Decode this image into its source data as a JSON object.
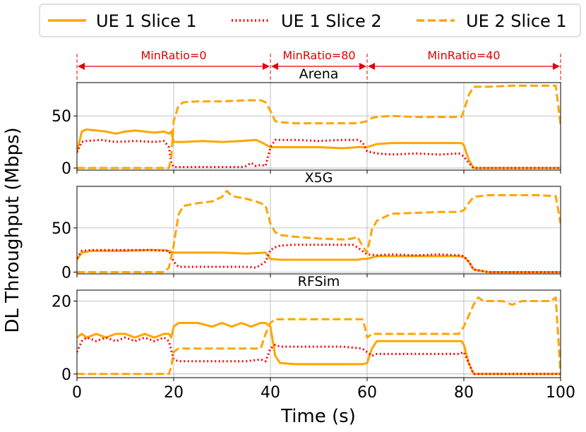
{
  "chart_data": {
    "type": "line",
    "xlabel": "Time (s)",
    "ylabel": "DL Throughput (Mbps)",
    "xlim": [
      0,
      100
    ],
    "xticks": [
      0,
      20,
      40,
      60,
      80,
      100
    ],
    "grid": true,
    "legend": {
      "position": "top",
      "entries": [
        {
          "name": "UE 1 Slice 1",
          "color": "#FFA500",
          "style": "solid"
        },
        {
          "name": "UE 1 Slice 2",
          "color": "#FF0000",
          "style": "dotted"
        },
        {
          "name": "UE 2 Slice 1",
          "color": "#FFA500",
          "style": "dashed"
        }
      ]
    },
    "annotations": [
      {
        "label": "MinRatio=0",
        "x_start": 0,
        "x_end": 40
      },
      {
        "label": "MinRatio=80",
        "x_start": 40,
        "x_end": 60
      },
      {
        "label": "MinRatio=40",
        "x_start": 60,
        "x_end": 100
      }
    ],
    "panels": [
      {
        "title": "Arena",
        "ylim": [
          -2,
          82
        ],
        "yticks": [
          0,
          50
        ],
        "series": [
          {
            "name": "UE 1 Slice 1",
            "x": [
              0,
              1,
              2,
              4,
              6,
              8,
              10,
              12,
              14,
              16,
              18,
              19,
              19.5,
              20,
              22,
              26,
              30,
              34,
              37,
              38,
              40,
              45,
              50,
              55,
              58,
              59,
              60,
              62,
              65,
              70,
              75,
              79.5,
              80,
              81,
              82,
              85,
              90,
              95,
              100
            ],
            "y": [
              15,
              35,
              37,
              36,
              35,
              33,
              35,
              36,
              35,
              34,
              35,
              33,
              35,
              25,
              25,
              26,
              25,
              26,
              27,
              25,
              20,
              20,
              20,
              19,
              20,
              20,
              20,
              23,
              24,
              24,
              24,
              24,
              22,
              8,
              0,
              0,
              0,
              0,
              0
            ]
          },
          {
            "name": "UE 1 Slice 2",
            "x": [
              0,
              1,
              2,
              5,
              8,
              12,
              16,
              18,
              19,
              19.5,
              20,
              22,
              26,
              30,
              34,
              35,
              36,
              37,
              38,
              39,
              40,
              41,
              45,
              50,
              55,
              58,
              59,
              60,
              62,
              65,
              70,
              75,
              79,
              80,
              81,
              82,
              85,
              90,
              95,
              100
            ],
            "y": [
              15,
              25,
              26,
              27,
              25,
              26,
              25,
              26,
              20,
              5,
              1,
              1,
              1,
              1,
              1,
              2,
              5,
              2,
              3,
              2,
              20,
              27,
              27,
              26,
              27,
              27,
              25,
              16,
              14,
              13,
              14,
              13,
              14,
              11,
              5,
              0,
              0,
              0,
              0,
              0
            ]
          },
          {
            "name": "UE 2 Slice 1",
            "x": [
              0,
              19,
              19.5,
              20,
              21,
              22,
              25,
              30,
              35,
              38,
              39,
              40,
              41,
              42,
              45,
              50,
              55,
              58,
              59,
              60,
              61,
              62,
              65,
              70,
              75,
              79.5,
              80,
              81,
              82,
              85,
              90,
              95,
              99,
              100
            ],
            "y": [
              0,
              0,
              10,
              45,
              60,
              63,
              64,
              64,
              65,
              65,
              63,
              55,
              45,
              44,
              43,
              43,
              43,
              43,
              44,
              45,
              48,
              49,
              50,
              49,
              49,
              49,
              55,
              70,
              78,
              78,
              79,
              79,
              79,
              42
            ]
          }
        ]
      },
      {
        "title": "X5G",
        "ylim": [
          -2,
          97
        ],
        "yticks": [
          0,
          50
        ],
        "series": [
          {
            "name": "UE 1 Slice 1",
            "x": [
              0,
              1,
              3,
              5,
              10,
              15,
              18,
              19,
              20,
              22,
              25,
              30,
              35,
              39,
              40,
              42,
              45,
              50,
              55,
              58,
              59,
              60,
              62,
              65,
              70,
              75,
              79,
              80,
              81,
              82,
              85,
              90,
              95,
              100
            ],
            "y": [
              14,
              22,
              24,
              24,
              24,
              25,
              25,
              24,
              22,
              22,
              22,
              22,
              21,
              22,
              15,
              14,
              14,
              14,
              14,
              14,
              15,
              15,
              18,
              18,
              18,
              18,
              18,
              17,
              12,
              3,
              0,
              0,
              0,
              0
            ]
          },
          {
            "name": "UE 1 Slice 2",
            "x": [
              0,
              1,
              3,
              5,
              10,
              15,
              18,
              19,
              20,
              21,
              22,
              25,
              30,
              35,
              37,
              38,
              39,
              40,
              41,
              42,
              45,
              50,
              55,
              57,
              58,
              59,
              60,
              62,
              65,
              70,
              75,
              79,
              80,
              81,
              82,
              85,
              90,
              95,
              100
            ],
            "y": [
              16,
              24,
              25,
              25,
              25,
              25,
              24,
              24,
              12,
              6,
              6,
              6,
              6,
              6,
              5,
              8,
              12,
              25,
              28,
              30,
              31,
              31,
              31,
              31,
              28,
              24,
              20,
              19,
              20,
              19,
              20,
              19,
              18,
              12,
              3,
              0,
              0,
              0,
              0
            ]
          },
          {
            "name": "UE 2 Slice 1",
            "x": [
              0,
              18,
              19,
              20,
              21,
              22,
              25,
              28,
              30,
              31,
              32,
              35,
              37,
              38,
              39,
              40,
              41,
              42,
              45,
              50,
              55,
              57,
              58,
              59,
              60,
              61,
              62,
              65,
              70,
              75,
              79,
              80,
              81,
              82,
              85,
              90,
              95,
              99,
              100
            ],
            "y": [
              0,
              0,
              5,
              30,
              65,
              75,
              78,
              80,
              85,
              92,
              86,
              83,
              80,
              78,
              75,
              55,
              45,
              42,
              40,
              38,
              37,
              38,
              40,
              30,
              22,
              48,
              58,
              66,
              67,
              68,
              68,
              70,
              78,
              85,
              87,
              87,
              87,
              86,
              55
            ]
          }
        ]
      },
      {
        "title": "RFSim",
        "ylim": [
          -1,
          23
        ],
        "yticks": [
          0,
          20
        ],
        "series": [
          {
            "name": "UE 1 Slice 1",
            "x": [
              0,
              1,
              2,
              4,
              6,
              8,
              10,
              12,
              14,
              16,
              18,
              19,
              19.5,
              20,
              21,
              22,
              25,
              28,
              30,
              32,
              34,
              36,
              38,
              39,
              40,
              41,
              42,
              45,
              50,
              55,
              59,
              60,
              61,
              62,
              65,
              70,
              75,
              79.5,
              80,
              81,
              82,
              85,
              90,
              95,
              100
            ],
            "y": [
              10,
              11,
              10,
              11,
              10,
              11,
              11,
              10,
              11,
              10,
              11,
              11,
              10,
              13,
              14,
              14,
              14,
              13,
              14,
              13,
              14,
              13,
              14,
              14,
              13,
              5,
              3,
              2.7,
              2.7,
              2.7,
              2.7,
              3,
              7,
              9,
              9,
              9,
              9,
              9,
              8,
              3,
              0,
              0,
              0,
              0,
              0
            ]
          },
          {
            "name": "UE 1 Slice 2",
            "x": [
              0,
              1,
              2,
              4,
              6,
              8,
              10,
              12,
              14,
              16,
              18,
              19,
              20,
              21,
              22,
              25,
              30,
              35,
              38,
              39,
              40,
              41,
              42,
              45,
              50,
              55,
              59,
              60,
              61,
              62,
              65,
              70,
              75,
              79,
              80,
              81,
              82,
              85,
              90,
              95,
              100
            ],
            "y": [
              6,
              9,
              10,
              9,
              10,
              9,
              10,
              9,
              10,
              9,
              10,
              9,
              4,
              3.5,
              3.5,
              3.5,
              3.5,
              3.5,
              4,
              3.5,
              7,
              8,
              7.5,
              7.5,
              7.5,
              7.5,
              7,
              6,
              5,
              5.5,
              5.5,
              5.5,
              5.5,
              5.5,
              6,
              3,
              0,
              0,
              0,
              0,
              0
            ]
          },
          {
            "name": "UE 2 Slice 1",
            "x": [
              0,
              19,
              19.5,
              20,
              21,
              22,
              25,
              30,
              35,
              38,
              39,
              40,
              41,
              42,
              45,
              50,
              55,
              59,
              59.5,
              60,
              61,
              62,
              65,
              70,
              75,
              79,
              80,
              81,
              82,
              83,
              84,
              86,
              88,
              90,
              92,
              94,
              96,
              98,
              99,
              100
            ],
            "y": [
              0,
              0,
              2,
              6,
              7,
              7,
              7,
              7,
              7,
              7,
              11,
              14,
              15,
              15,
              15,
              15,
              15,
              15,
              13,
              10,
              11,
              11,
              11,
              11,
              11,
              11,
              13,
              16,
              19,
              21,
              20,
              20,
              20,
              19,
              20,
              20,
              20,
              20,
              21,
              0
            ]
          }
        ]
      }
    ]
  }
}
